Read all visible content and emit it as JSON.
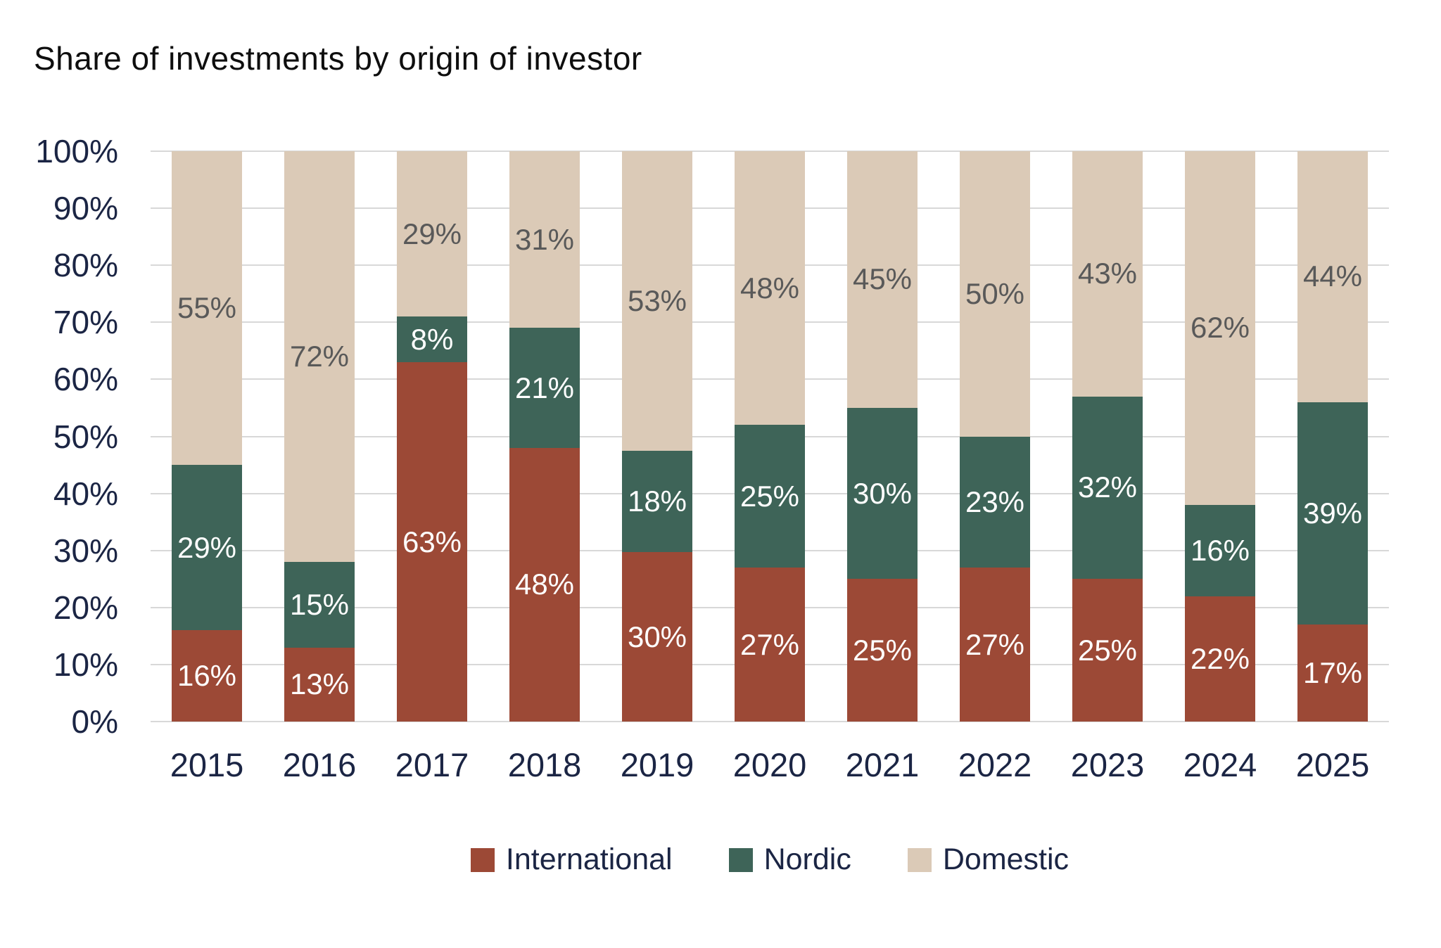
{
  "title": "Share of investments by origin of investor",
  "colors": {
    "international": "#9C4936",
    "nordic": "#3E6458",
    "domestic": "#DBCAB7",
    "axis_text": "#1B2544",
    "domestic_label": "#595959",
    "inbar_label": "#FFFFFF",
    "gridline": "#D8D8D8",
    "background": "#FFFFFF",
    "title_text": "#0E0E0E"
  },
  "chart_data": {
    "type": "bar",
    "stacked": true,
    "percent_stacked": true,
    "title": "Share of investments by origin of investor",
    "xlabel": "",
    "ylabel": "",
    "ylim": [
      0,
      100
    ],
    "grid": true,
    "legend_position": "bottom",
    "categories": [
      "2015",
      "2016",
      "2017",
      "2018",
      "2019",
      "2020",
      "2021",
      "2022",
      "2023",
      "2024",
      "2025"
    ],
    "yticks": [
      "0%",
      "10%",
      "20%",
      "30%",
      "40%",
      "50%",
      "60%",
      "70%",
      "80%",
      "90%",
      "100%"
    ],
    "series": [
      {
        "name": "International",
        "color": "#9C4936",
        "label_color": "#FFFFFF",
        "values": [
          16,
          13,
          63,
          48,
          30,
          27,
          25,
          27,
          25,
          22,
          17
        ]
      },
      {
        "name": "Nordic",
        "color": "#3E6458",
        "label_color": "#FFFFFF",
        "values": [
          29,
          15,
          8,
          21,
          18,
          25,
          30,
          23,
          32,
          16,
          39
        ]
      },
      {
        "name": "Domestic",
        "color": "#DBCAB7",
        "label_color": "#595959",
        "values": [
          55,
          72,
          29,
          31,
          53,
          48,
          45,
          50,
          43,
          62,
          44
        ]
      }
    ]
  }
}
